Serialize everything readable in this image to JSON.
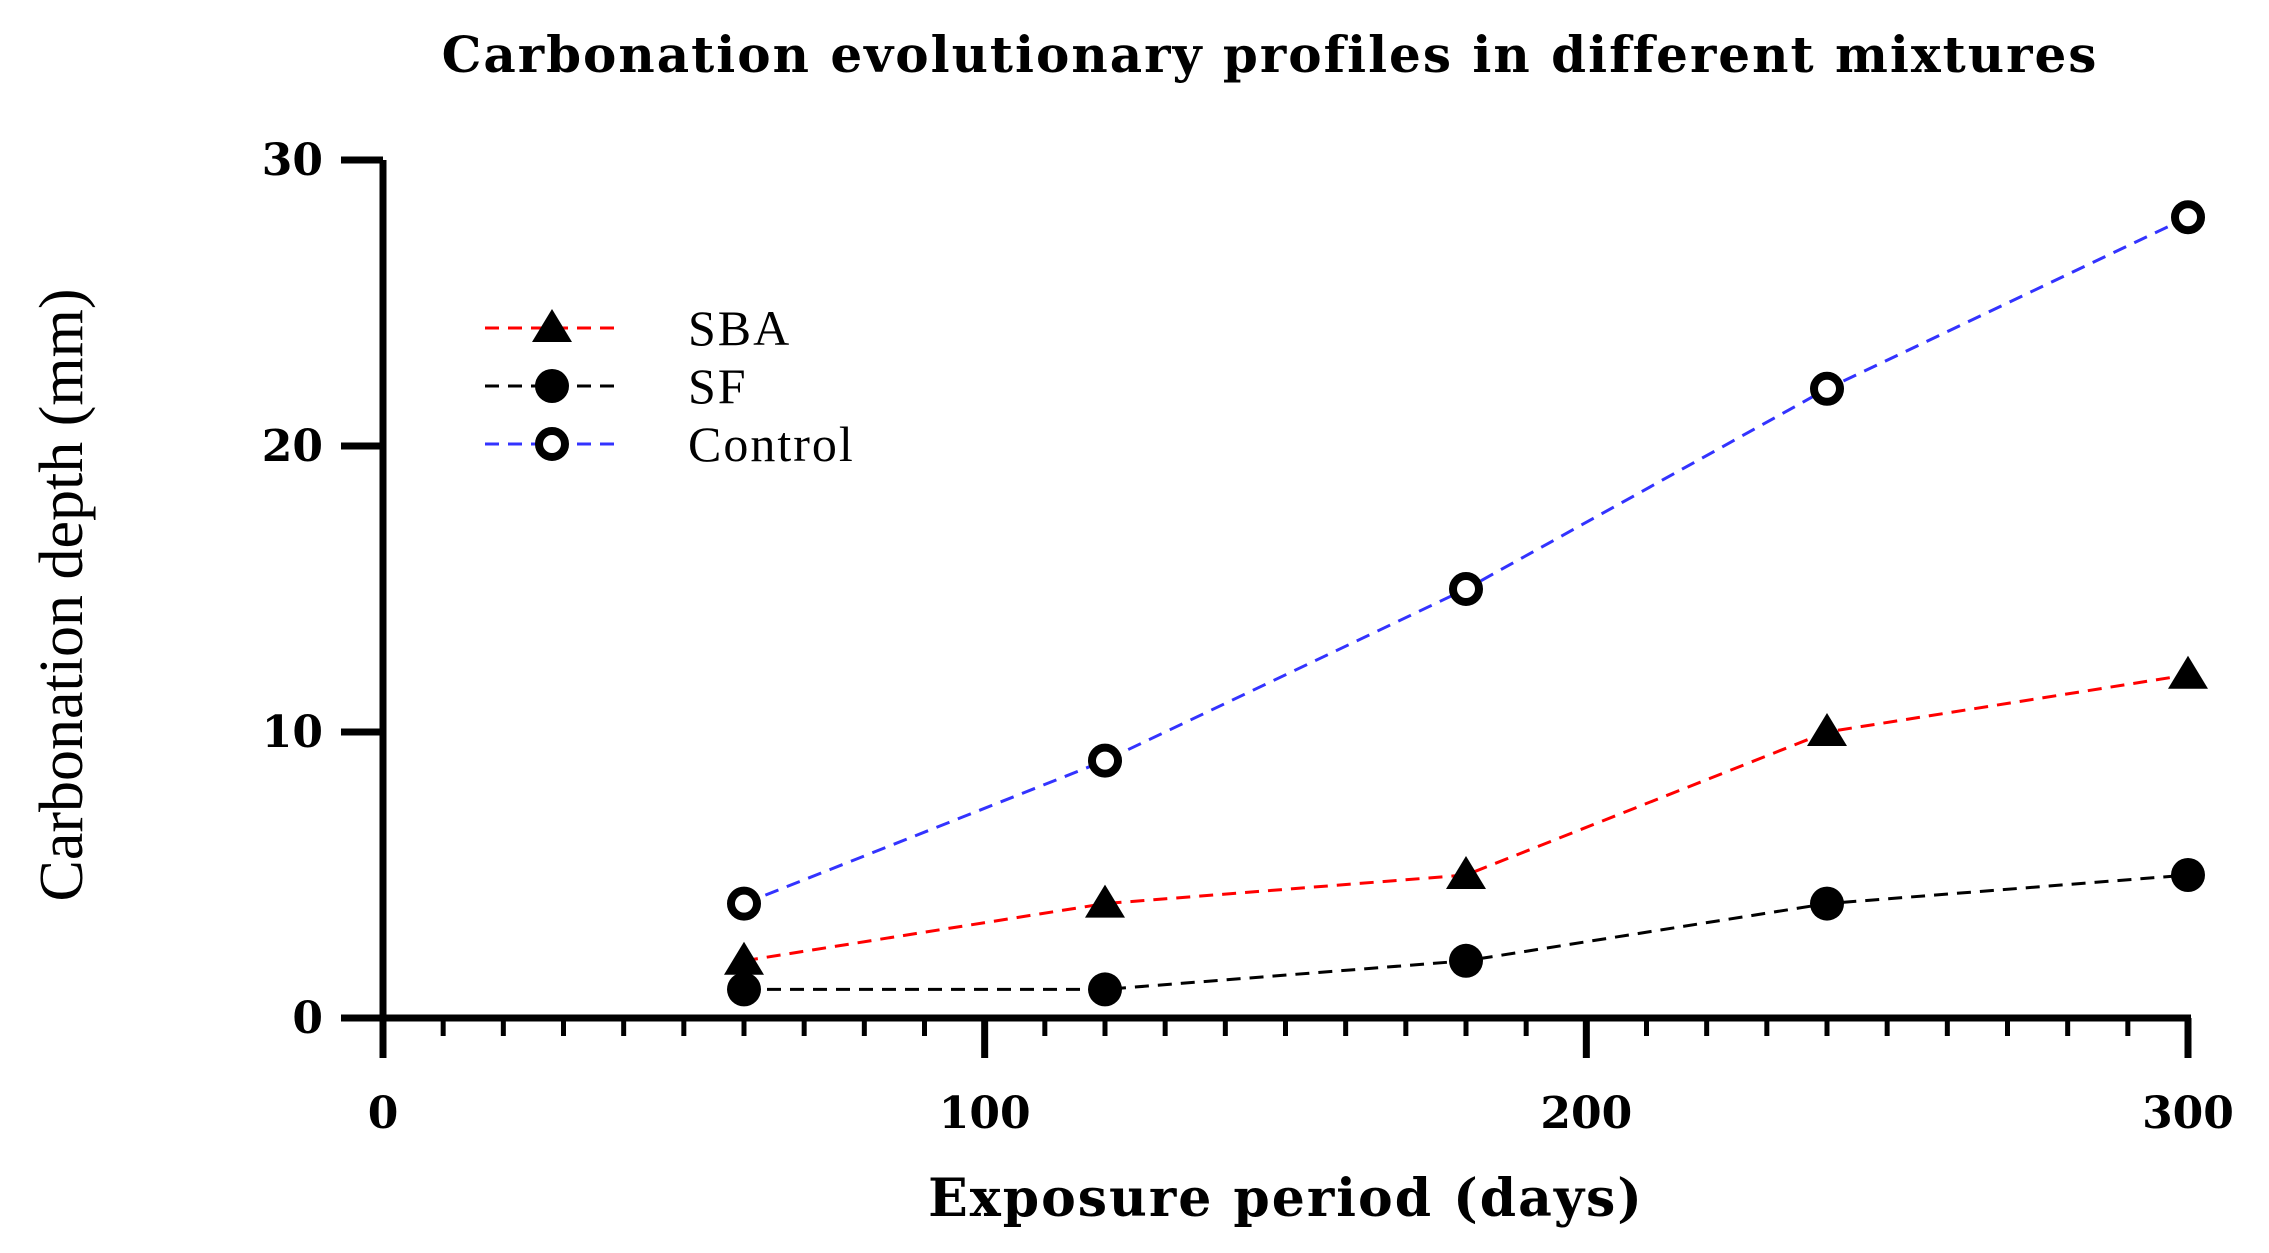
{
  "chart_data": {
    "type": "line",
    "title": "Carbonation evolutionary profiles in different mixtures",
    "xlabel": "Exposure period (days)",
    "ylabel": "Carbonation depth (mm)",
    "xlim": [
      0,
      300
    ],
    "ylim": [
      0,
      30
    ],
    "x_ticks": [
      "0",
      "100",
      "200",
      "300"
    ],
    "y_ticks": [
      "0",
      "10",
      "20",
      "30"
    ],
    "x_major_step": 100,
    "x_minor_step": 10,
    "y_major_step": 10,
    "grid": false,
    "legend_position": "upper-left",
    "x": [
      60,
      120,
      180,
      240,
      300
    ],
    "series": [
      {
        "name": "SBA",
        "values": [
          2,
          4,
          5,
          10,
          12
        ],
        "color": "#ff0000",
        "marker": "filled-triangle",
        "line_style": "dashed"
      },
      {
        "name": "SF",
        "values": [
          1,
          1,
          2,
          4,
          5
        ],
        "color": "#000000",
        "marker": "filled-circle",
        "line_style": "dashed"
      },
      {
        "name": "Control",
        "values": [
          4,
          9,
          15,
          22,
          28
        ],
        "color": "#3333ff",
        "marker": "open-circle",
        "line_style": "dashed"
      }
    ]
  }
}
